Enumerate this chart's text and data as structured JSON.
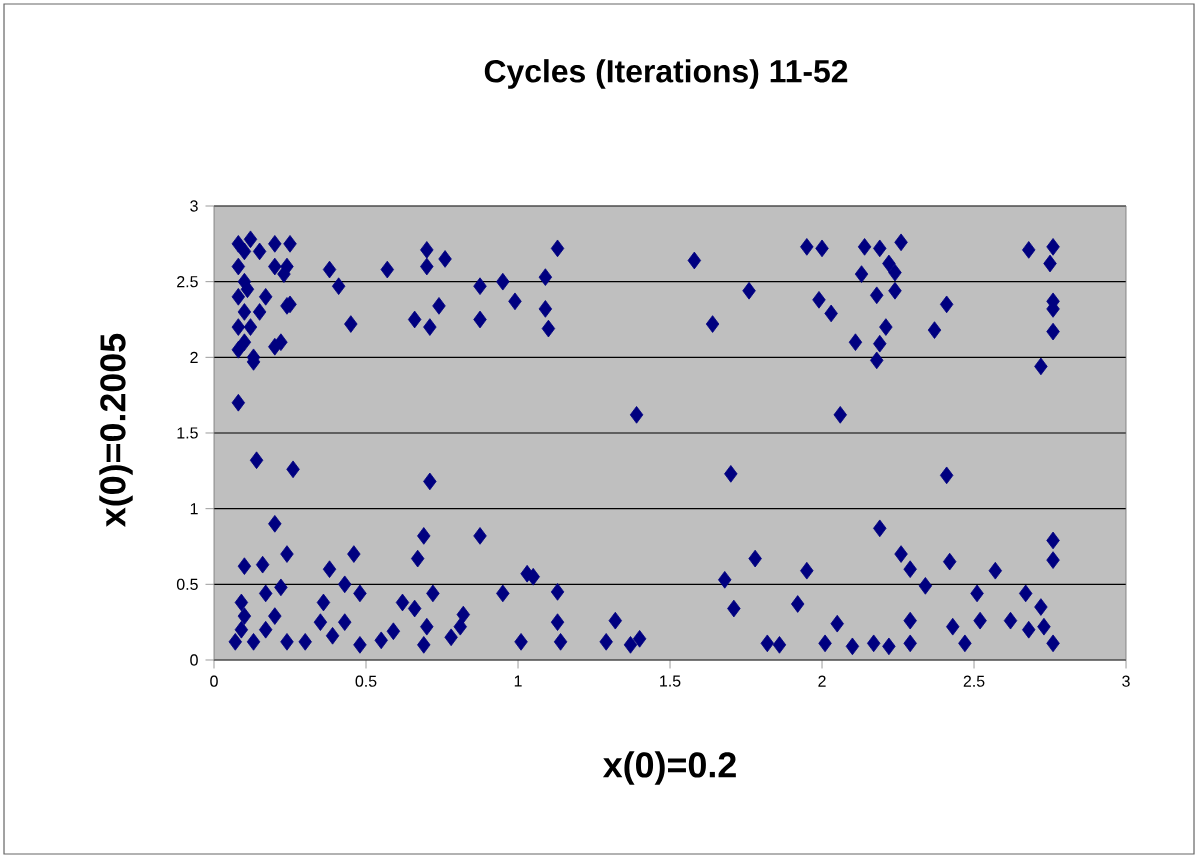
{
  "chart_data": {
    "type": "scatter",
    "title": "Cycles (Iterations) 11-52",
    "xlabel": "x(0)=0.2",
    "ylabel": "x(0)=0.2005",
    "xlim": [
      0,
      3
    ],
    "ylim": [
      0,
      3
    ],
    "xticks": [
      0,
      0.5,
      1,
      1.5,
      2,
      2.5,
      3
    ],
    "yticks": [
      0,
      0.5,
      1,
      1.5,
      2,
      2.5,
      3
    ],
    "grid": "y",
    "marker": "diamond",
    "series": [
      {
        "color": "#000080",
        "x": [
          0.08,
          0.1,
          0.12,
          0.08,
          0.1,
          0.08,
          0.1,
          0.08,
          0.12,
          0.1,
          0.08,
          0.13,
          0.15,
          0.17,
          0.2,
          0.2,
          0.25,
          0.23,
          0.25,
          0.22,
          0.08,
          0.15,
          0.11,
          0.38,
          0.41,
          0.45,
          0.57,
          0.7,
          0.7,
          0.76,
          0.66,
          0.71,
          0.74,
          0.875,
          0.875,
          0.95,
          0.99,
          1.09,
          1.13,
          1.09,
          1.1,
          1.39,
          0.13,
          0.2,
          0.24,
          0.24,
          1.58,
          1.76,
          1.64,
          1.95,
          2.0,
          1.99,
          2.03,
          2.11,
          2.06,
          2.14,
          2.13,
          2.19,
          2.26,
          2.22,
          2.24,
          2.24,
          2.18,
          2.21,
          2.19,
          2.18,
          2.41,
          2.37,
          2.68,
          2.76,
          2.75,
          2.76,
          2.76,
          2.76,
          2.72,
          0.14,
          0.26,
          0.71,
          0.2,
          0.24,
          0.46,
          0.38,
          0.69,
          0.67,
          0.875,
          0.1,
          0.16,
          0.22,
          0.43,
          0.48,
          0.72,
          0.95,
          1.03,
          1.05,
          1.13,
          0.36,
          0.62,
          0.66,
          0.82,
          0.81,
          0.09,
          0.09,
          0.13,
          0.17,
          0.24,
          0.3,
          0.39,
          0.48,
          0.55,
          0.59,
          0.69,
          0.7,
          0.78,
          1.01,
          1.14,
          1.13,
          1.29,
          1.32,
          1.4,
          1.37,
          0.1,
          0.2,
          0.17,
          0.35,
          0.43,
          0.07,
          1.7,
          2.41,
          2.19,
          1.78,
          1.68,
          1.71,
          1.95,
          1.92,
          1.82,
          1.86,
          2.01,
          2.05,
          2.1,
          2.17,
          2.22,
          2.29,
          2.29,
          2.26,
          2.29,
          2.34,
          2.42,
          2.43,
          2.47,
          2.51,
          2.52,
          2.57,
          2.62,
          2.67,
          2.72,
          2.76,
          2.76,
          2.76,
          2.73,
          2.68
        ],
        "values": [
          2.75,
          2.7,
          2.78,
          2.6,
          2.5,
          2.4,
          2.3,
          2.2,
          2.2,
          2.1,
          2.05,
          2.0,
          2.3,
          2.4,
          2.75,
          2.6,
          2.75,
          2.55,
          2.35,
          2.1,
          1.7,
          2.7,
          2.45,
          2.58,
          2.47,
          2.22,
          2.58,
          2.71,
          2.6,
          2.65,
          2.25,
          2.2,
          2.34,
          2.47,
          2.25,
          2.5,
          2.37,
          2.53,
          2.72,
          2.32,
          2.19,
          1.62,
          1.97,
          2.07,
          2.6,
          2.34,
          2.64,
          2.44,
          2.22,
          2.73,
          2.72,
          2.38,
          2.29,
          2.1,
          1.62,
          2.73,
          2.55,
          2.72,
          2.76,
          2.62,
          2.56,
          2.44,
          2.41,
          2.2,
          2.09,
          1.98,
          2.35,
          2.18,
          2.71,
          2.73,
          2.62,
          2.37,
          2.32,
          2.17,
          1.94,
          1.32,
          1.26,
          1.18,
          0.9,
          0.7,
          0.7,
          0.6,
          0.82,
          0.67,
          0.82,
          0.62,
          0.63,
          0.48,
          0.5,
          0.44,
          0.44,
          0.44,
          0.57,
          0.55,
          0.45,
          0.38,
          0.38,
          0.34,
          0.3,
          0.22,
          0.38,
          0.2,
          0.12,
          0.2,
          0.12,
          0.12,
          0.16,
          0.1,
          0.13,
          0.19,
          0.1,
          0.22,
          0.15,
          0.12,
          0.12,
          0.25,
          0.12,
          0.26,
          0.14,
          0.1,
          0.29,
          0.29,
          0.44,
          0.25,
          0.25,
          0.12,
          1.23,
          1.22,
          0.87,
          0.67,
          0.53,
          0.34,
          0.59,
          0.37,
          0.11,
          0.1,
          0.11,
          0.24,
          0.09,
          0.11,
          0.09,
          0.11,
          0.26,
          0.7,
          0.6,
          0.49,
          0.65,
          0.22,
          0.11,
          0.44,
          0.26,
          0.59,
          0.26,
          0.44,
          0.35,
          0.79,
          0.66,
          0.11,
          0.22,
          0.2
        ]
      }
    ]
  }
}
